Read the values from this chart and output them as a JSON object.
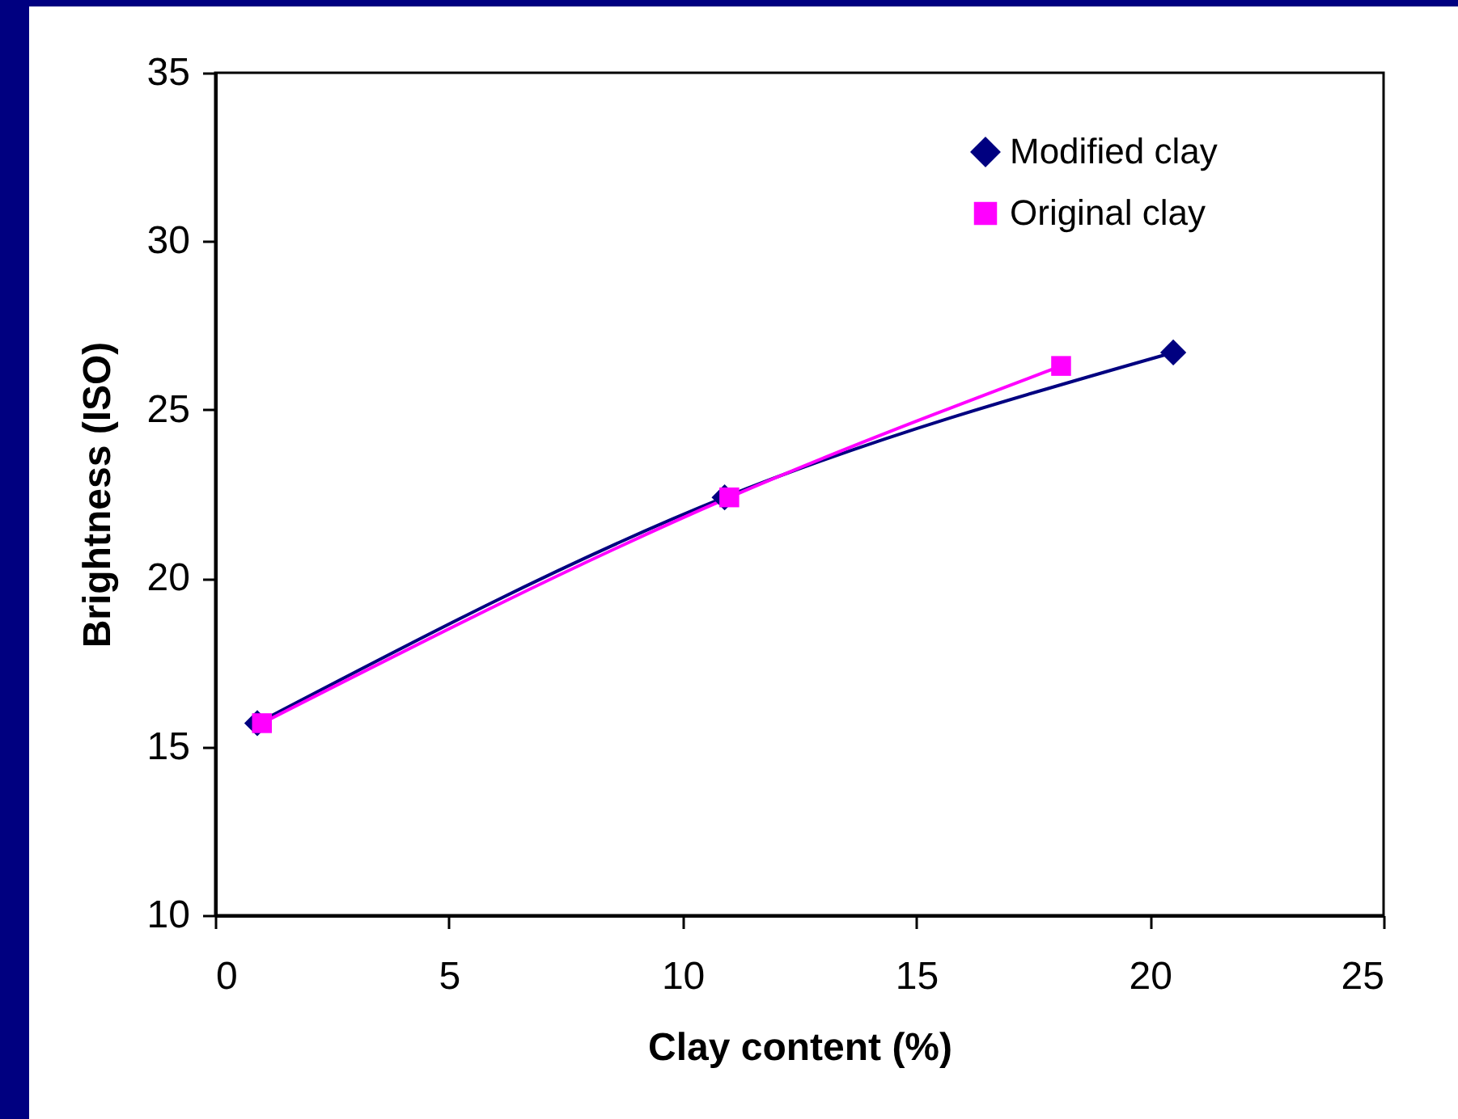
{
  "chart_data": {
    "type": "line",
    "xlabel": "Clay content (%)",
    "ylabel": "Brightness (ISO)",
    "xlim": [
      0,
      25
    ],
    "xticks": [
      0,
      5,
      10,
      15,
      20,
      25
    ],
    "ylim": [
      10,
      35
    ],
    "yticks": [
      10,
      15,
      20,
      25,
      30,
      35
    ],
    "legend": "top right",
    "line_style": "solid",
    "series": [
      {
        "name": "Modified clay",
        "color": "#000080",
        "marker": "diamond",
        "x": [
          0.9,
          10.9,
          20.5
        ],
        "values": [
          15.7,
          22.4,
          26.7
        ]
      },
      {
        "name": "Original clay",
        "color": "#ff00ff",
        "marker": "square",
        "x": [
          1.0,
          11.0,
          18.1
        ],
        "values": [
          15.7,
          22.4,
          26.3
        ]
      }
    ]
  }
}
